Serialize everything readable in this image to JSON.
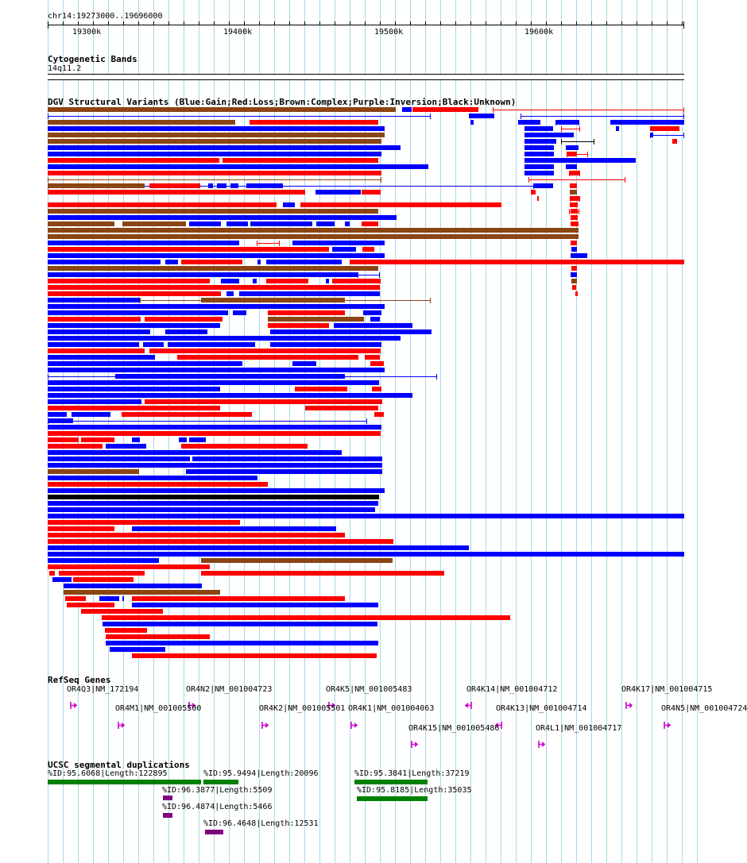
{
  "location": "chr14:19273000..19696000",
  "ruler": {
    "ticks": [
      {
        "label": "19300k"
      },
      {
        "label": "19400k"
      },
      {
        "label": "19500k"
      },
      {
        "label": "19600k"
      }
    ]
  },
  "cytobands": {
    "title": "Cytogenetic Bands",
    "band": "14q11.2"
  },
  "dgv": {
    "title": "DGV Structural Variants (Blue:Gain;Red:Loss;Brown:Complex;Purple:Inversion;Black:Unknown)"
  },
  "refseq": {
    "title": "RefSeq Genes",
    "genes": [
      {
        "label": "OR4Q3|NM_172194",
        "strand": "+"
      },
      {
        "label": "OR4N2|NM_001004723",
        "strand": "+"
      },
      {
        "label": "OR4K5|NM_001005483",
        "strand": "+"
      },
      {
        "label": "OR4K14|NM_001004712",
        "strand": "-"
      },
      {
        "label": "OR4K17|NM_001004715",
        "strand": "+"
      },
      {
        "label": "OR4M1|NM_001005500",
        "strand": "+"
      },
      {
        "label": "OR4K2|NM_001005501",
        "strand": "+"
      },
      {
        "label": "OR4K1|NM_001004063",
        "strand": "+"
      },
      {
        "label": "OR4K13|NM_001004714",
        "strand": "-"
      },
      {
        "label": "OR4N5|NM_001004724",
        "strand": "+"
      },
      {
        "label": "OR4K15|NM_001005486",
        "strand": "+"
      },
      {
        "label": "OR4L1|NM_001004717",
        "strand": "+"
      }
    ]
  },
  "segdups": {
    "title": "UCSC segmental duplications",
    "items": [
      {
        "label": "%ID:95.6068|Length:122895",
        "color": "#008000"
      },
      {
        "label": "%ID:95.9494|Length:20096",
        "color": "#008000"
      },
      {
        "label": "%ID:95.3841|Length:37219",
        "color": "#008000"
      },
      {
        "label": "%ID:96.3877|Length:5509",
        "color": "#800080"
      },
      {
        "label": "%ID:95.8185|Length:35035",
        "color": "#008000"
      },
      {
        "label": "%ID:96.4874|Length:5466",
        "color": "#800080"
      },
      {
        "label": "%ID:96.4648|Length:12531",
        "color": "#800080"
      }
    ]
  },
  "colors": {
    "gain": "#0000ff",
    "loss": "#ff0000",
    "complex": "#8b4513",
    "inversion": "#800080",
    "unknown": "#000000",
    "gene": "#cc00cc",
    "grid": "#a8d8e8"
  }
}
